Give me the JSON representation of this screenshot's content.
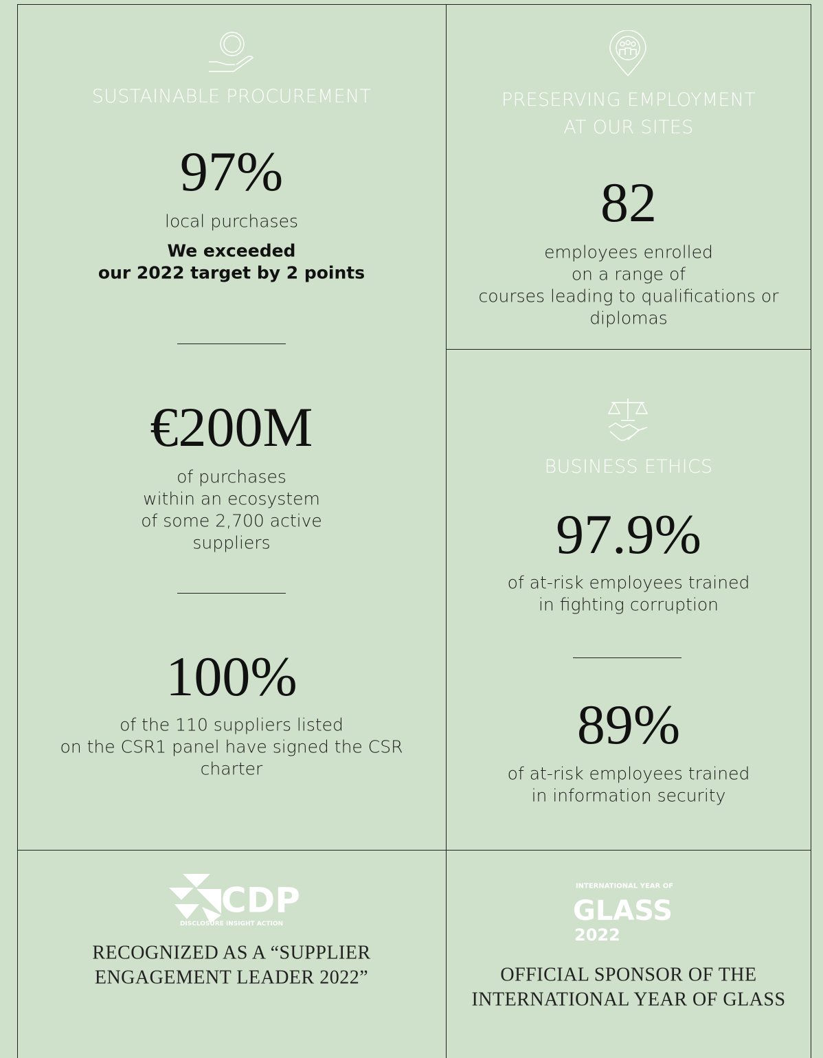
{
  "left": {
    "title": "SUSTAINABLE PROCUREMENT",
    "stats": [
      {
        "value": "97%",
        "description": [
          "local purchases"
        ],
        "note": [
          "We exceeded",
          "our 2022 target by 2 points"
        ]
      },
      {
        "value": "€200M",
        "description": [
          "of purchases",
          "within an ecosystem",
          "of some 2,700 active",
          "suppliers"
        ]
      },
      {
        "value": "100%",
        "description": [
          "of the 110 suppliers listed",
          "on the CSR1 panel have signed the CSR",
          "charter"
        ]
      }
    ]
  },
  "employment": {
    "title": [
      "PRESERVING EMPLOYMENT",
      "AT OUR SITES"
    ],
    "stats": [
      {
        "value": "82",
        "description": [
          "employees enrolled",
          "on a range of",
          "courses leading to qualifications or",
          "diplomas"
        ]
      }
    ]
  },
  "ethics": {
    "title": "BUSINESS ETHICS",
    "stats": [
      {
        "value": "97.9%",
        "description": [
          "of at-risk employees trained",
          "in fighting corruption"
        ]
      },
      {
        "value": "89%",
        "description": [
          "of at-risk employees trained",
          "in information security"
        ]
      }
    ]
  },
  "cdp": {
    "logo": "CDP",
    "logo_tagline": "DISCLOSURE INSIGHT ACTION",
    "caption": [
      "RECOGNIZED AS A “SUPPLIER",
      "ENGAGEMENT LEADER 2022”"
    ]
  },
  "glass": {
    "logo_top": "INTERNATIONAL YEAR OF",
    "logo_main": "GLASS",
    "logo_year": "2022",
    "caption": [
      "OFFICIAL SPONSOR OF THE",
      "INTERNATIONAL YEAR OF GLASS"
    ]
  }
}
